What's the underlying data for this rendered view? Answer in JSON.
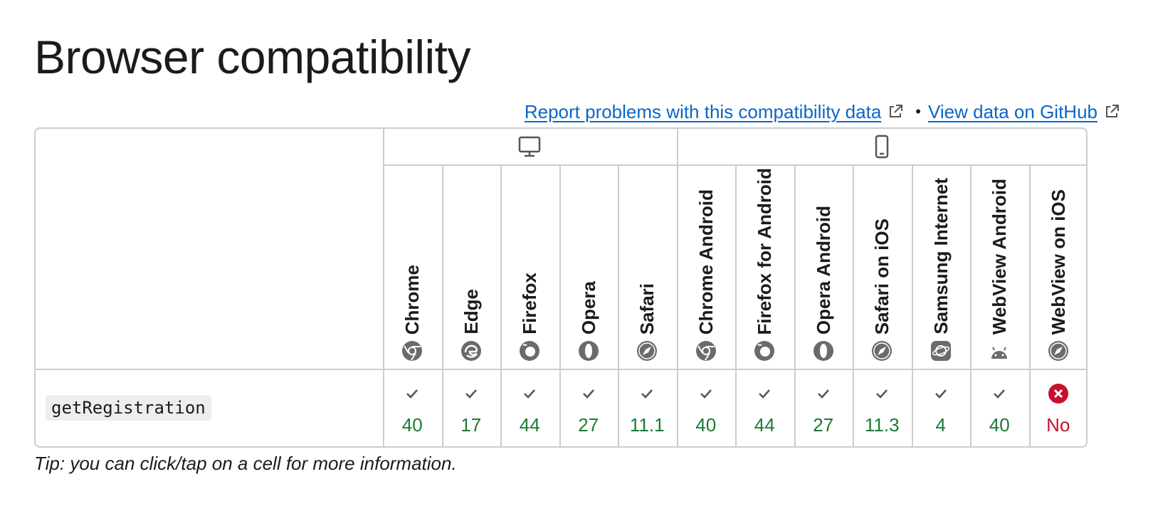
{
  "title": "Browser compatibility",
  "links": {
    "report": "Report problems with this compatibility data",
    "separator": "•",
    "github": "View data on GitHub"
  },
  "platforms": [
    {
      "name": "desktop",
      "icon": "desktop-icon"
    },
    {
      "name": "mobile",
      "icon": "mobile-icon"
    }
  ],
  "browsers": [
    {
      "name": "Chrome",
      "icon": "chrome-icon",
      "version": "40",
      "supported": true
    },
    {
      "name": "Edge",
      "icon": "edge-icon",
      "version": "17",
      "supported": true
    },
    {
      "name": "Firefox",
      "icon": "firefox-icon",
      "version": "44",
      "supported": true
    },
    {
      "name": "Opera",
      "icon": "opera-icon",
      "version": "27",
      "supported": true
    },
    {
      "name": "Safari",
      "icon": "safari-icon",
      "version": "11.1",
      "supported": true
    },
    {
      "name": "Chrome Android",
      "icon": "chrome-icon",
      "version": "40",
      "supported": true
    },
    {
      "name": "Firefox for Android",
      "icon": "firefox-icon",
      "version": "44",
      "supported": true
    },
    {
      "name": "Opera Android",
      "icon": "opera-icon",
      "version": "27",
      "supported": true
    },
    {
      "name": "Safari on iOS",
      "icon": "safari-icon",
      "version": "11.3",
      "supported": true
    },
    {
      "name": "Samsung Internet",
      "icon": "samsung-internet-icon",
      "version": "4",
      "supported": true
    },
    {
      "name": "WebView Android",
      "icon": "android-icon",
      "version": "40",
      "supported": true
    },
    {
      "name": "WebView on iOS",
      "icon": "safari-icon",
      "version": "No",
      "supported": false
    }
  ],
  "feature": "getRegistration",
  "tip": "Tip: you can click/tap on a cell for more information.",
  "colors": {
    "supported": "#1a7a32",
    "unsupported": "#c8102e",
    "link": "#0a66c9",
    "border": "#cdcdcd"
  }
}
